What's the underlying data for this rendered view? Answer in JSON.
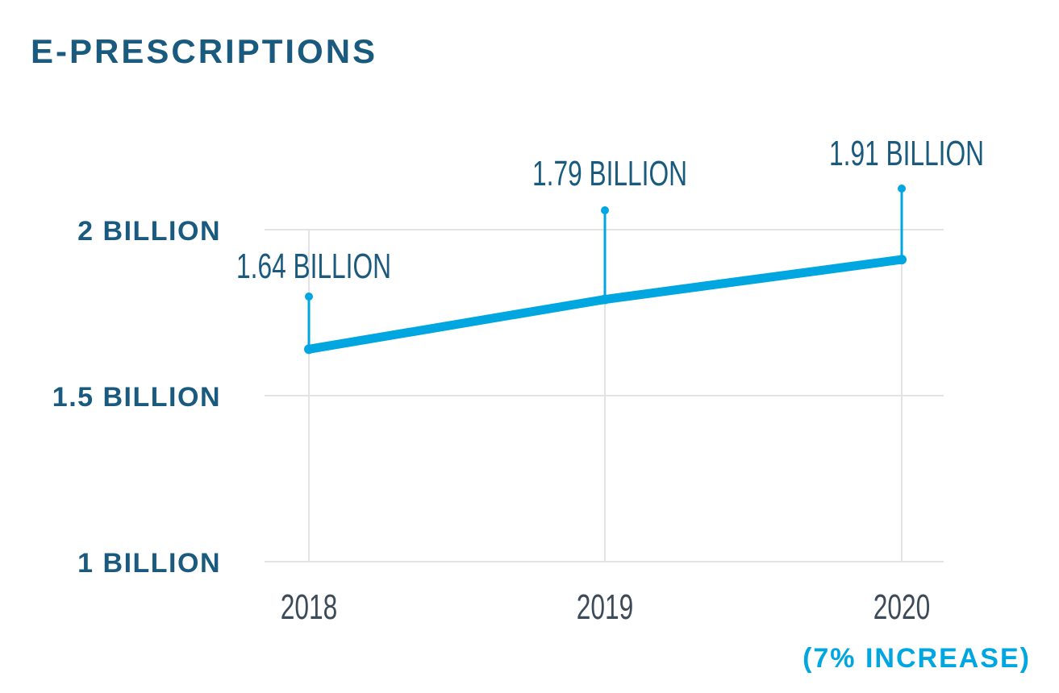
{
  "chart_data": {
    "type": "line",
    "title": "E-PRESCRIPTIONS",
    "categories": [
      "2018",
      "2019",
      "2020"
    ],
    "values": [
      1.64,
      1.79,
      1.91
    ],
    "data_labels": [
      "1.64 BILLION",
      "1.79 BILLION",
      "1.91 BILLION"
    ],
    "yticks": [
      {
        "value": 1,
        "label": "1 BILLION"
      },
      {
        "value": 1.5,
        "label": "1.5 BILLION"
      },
      {
        "value": 2,
        "label": "2 BILLION"
      }
    ],
    "ylim": [
      1,
      2
    ],
    "grid": true,
    "annotation": "(7% INCREASE)",
    "colors": {
      "line": "#00a6e0",
      "text": "#1a5a7e",
      "xtick": "#3d4a57",
      "grid": "#e3e3e3"
    }
  }
}
